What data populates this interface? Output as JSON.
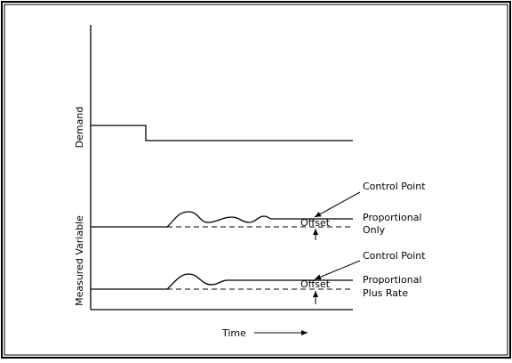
{
  "labels": {
    "demand_axis": "Demand",
    "measured_axis": "Measured Variable",
    "time_axis": "Time",
    "control_point_1": "Control Point",
    "control_point_2": "Control Point",
    "offset_1": "Offset",
    "offset_2": "Offset",
    "curve_1_line1": "Proportional",
    "curve_1_line2": "Only",
    "curve_2_line1": "Proportional",
    "curve_2_line2": "Plus Rate"
  },
  "colors": {
    "ink": "#000000",
    "background": "#ffffff"
  }
}
